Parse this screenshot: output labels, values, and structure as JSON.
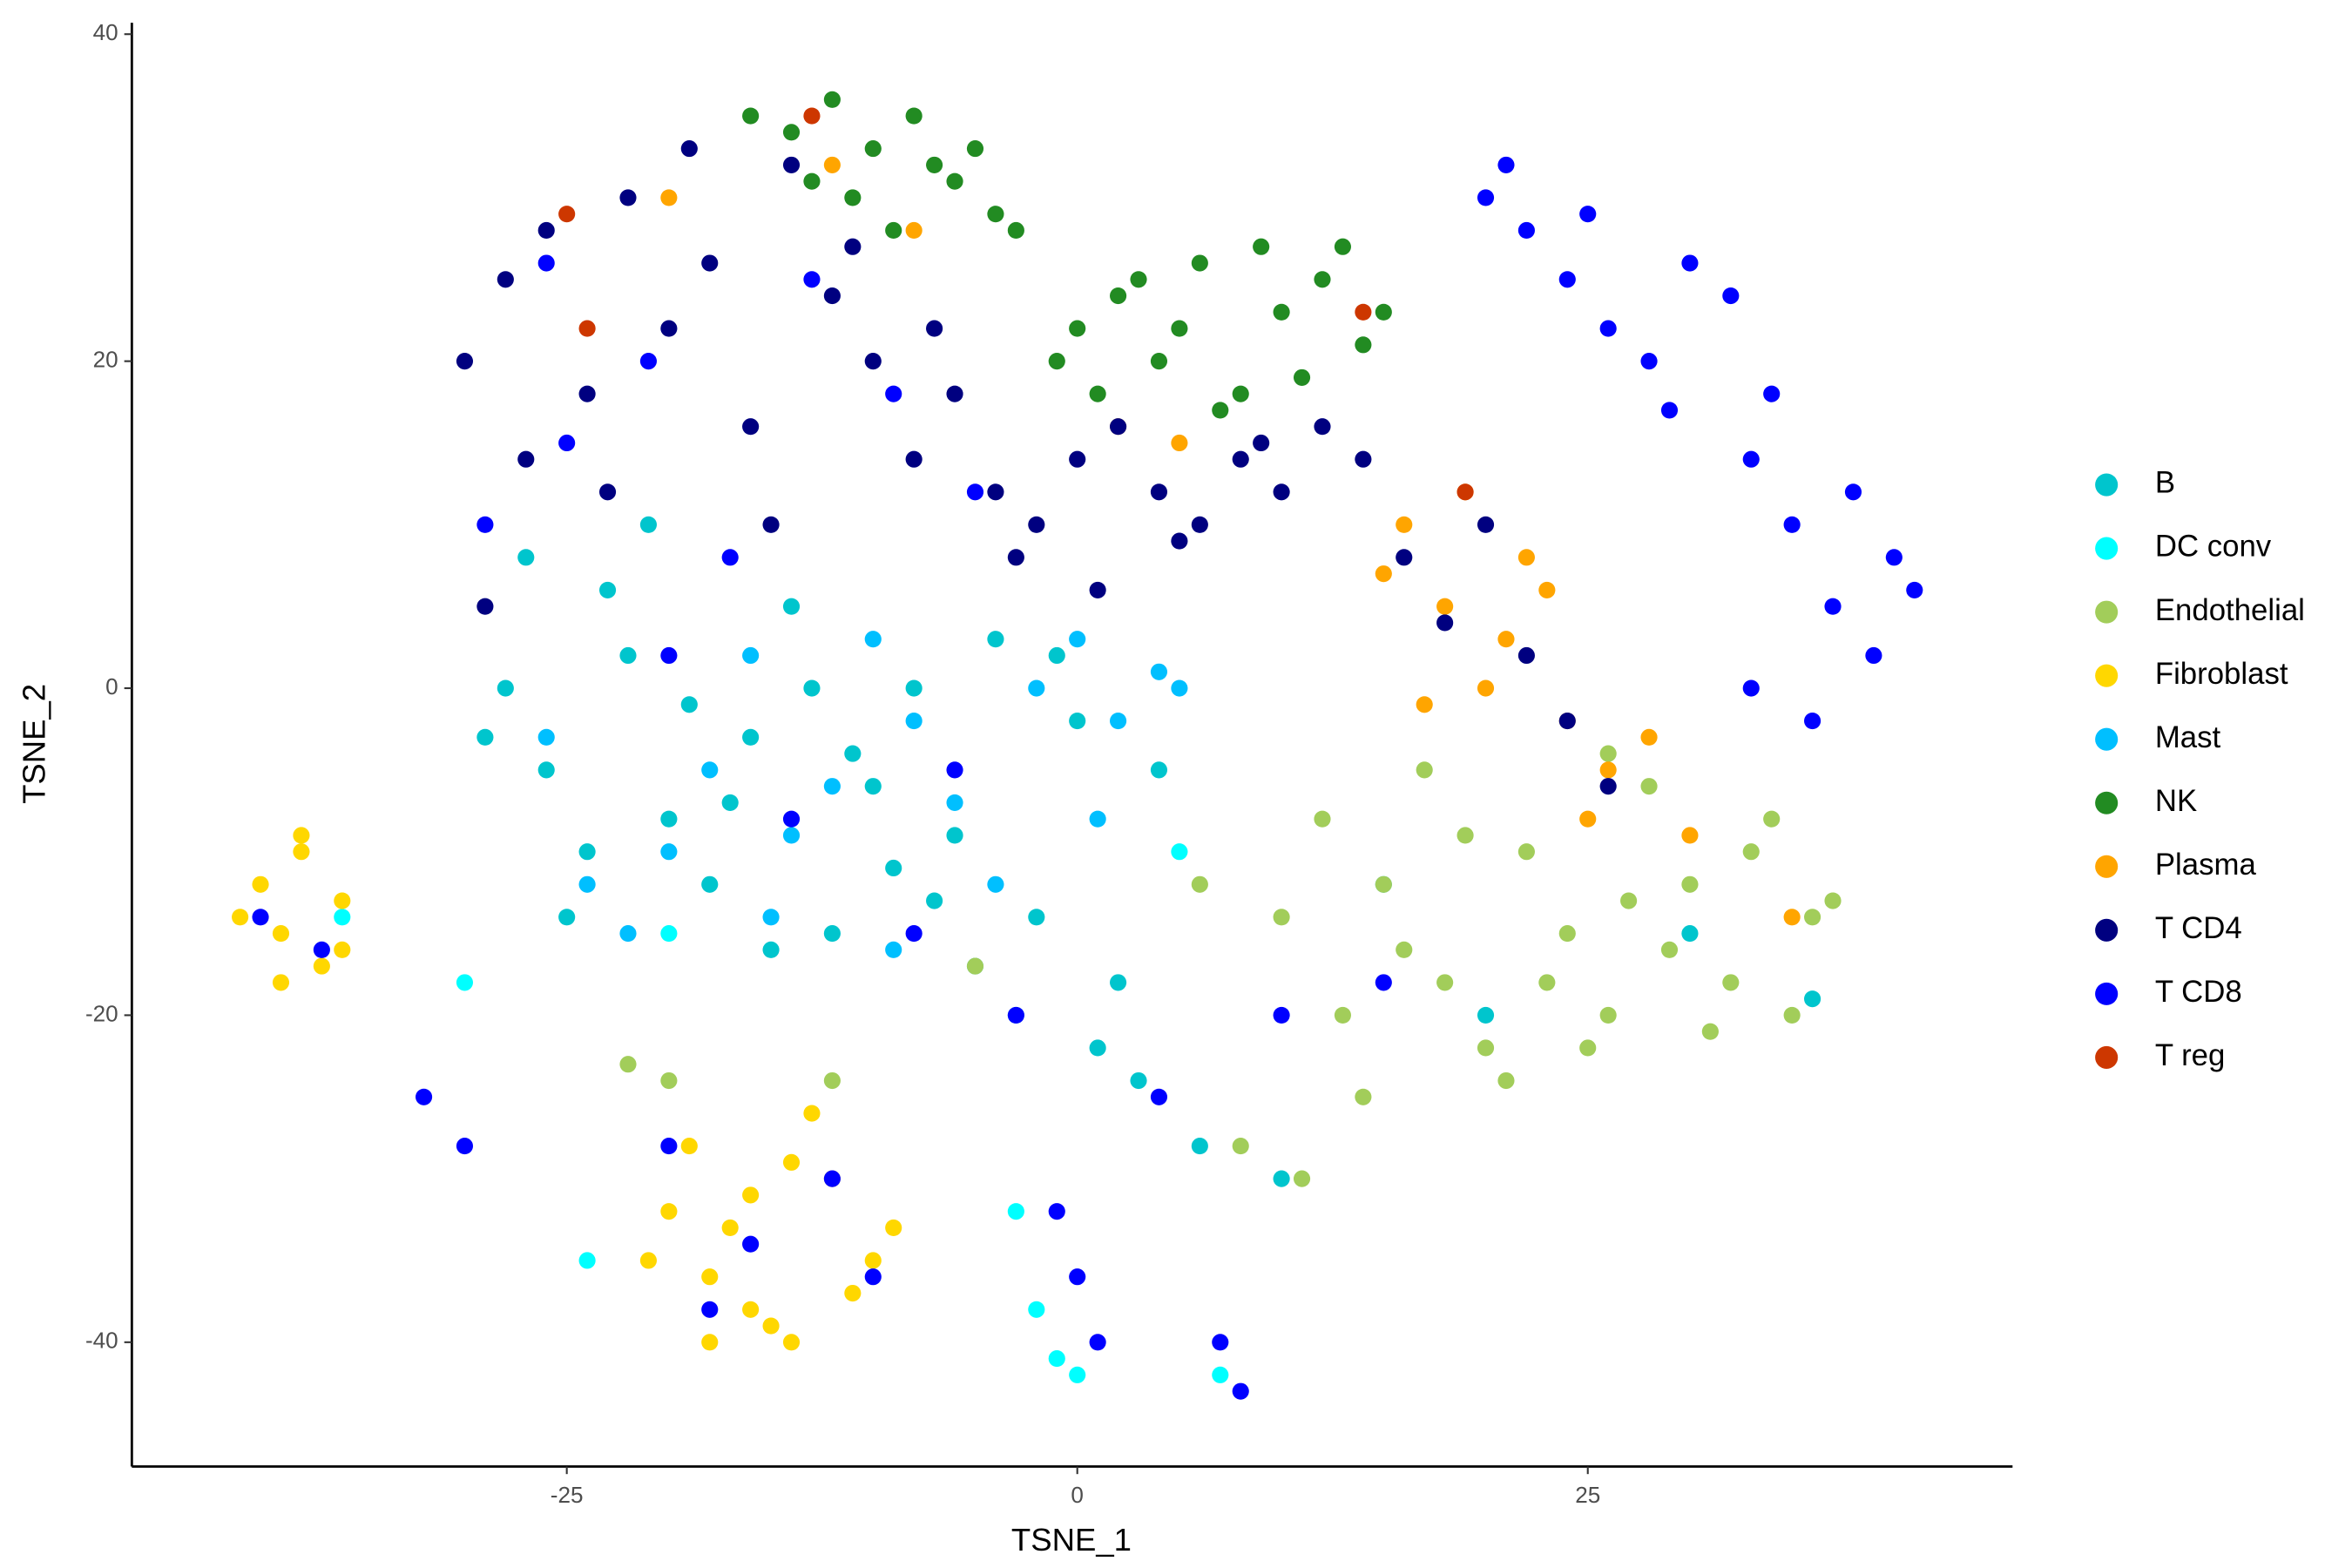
{
  "chart_data": {
    "type": "scatter",
    "x_label": "TSNE_1",
    "y_label": "TSNE_2",
    "xlim": [
      -46.3,
      45.8
    ],
    "ylim": [
      -47.6,
      40.7
    ],
    "xticks": [
      -25,
      0,
      25
    ],
    "yticks": [
      -40,
      -20,
      0,
      20,
      40
    ],
    "grid": false,
    "legend": "right",
    "series": [
      {
        "name": "B",
        "color": "#00C5CD",
        "x": [
          -28,
          -26,
          -24,
          -22,
          -20,
          -18,
          -16,
          -14,
          -12,
          -10,
          -8,
          -6,
          -4,
          -2,
          0,
          2,
          4,
          -27,
          -23,
          -19,
          -15,
          -11,
          -7,
          -3,
          1,
          -25,
          -21,
          -17,
          -13,
          -9,
          -5,
          -1,
          3,
          6,
          10,
          15,
          20,
          30,
          36,
          -29
        ],
        "y": [
          0,
          -5,
          -10,
          2,
          -8,
          -12,
          -3,
          5,
          -15,
          -6,
          0,
          -9,
          3,
          -14,
          -2,
          -18,
          -5,
          8,
          6,
          -1,
          -16,
          -4,
          -13,
          -20,
          -22,
          -14,
          10,
          -7,
          0,
          -11,
          -17,
          2,
          -24,
          -28,
          -30,
          -12,
          -20,
          -15,
          -19,
          -3
        ]
      },
      {
        "name": "DC conv",
        "color": "#00FFFF",
        "x": [
          -1,
          0,
          -3,
          -24,
          7,
          -2,
          5,
          -30,
          -20,
          -36
        ],
        "y": [
          -41,
          -42,
          -32,
          -35,
          -42,
          -38,
          -10,
          -18,
          -15,
          -14
        ]
      },
      {
        "name": "Endothelial",
        "color": "#A2CD5A",
        "x": [
          12,
          15,
          18,
          20,
          22,
          24,
          26,
          28,
          30,
          32,
          34,
          36,
          14,
          17,
          21,
          25,
          29,
          33,
          37,
          13,
          16,
          19,
          23,
          27,
          31,
          35,
          10,
          6,
          -22,
          -20,
          -12,
          -5,
          8,
          11,
          26
        ],
        "y": [
          -8,
          -12,
          -18,
          -22,
          -10,
          -15,
          -20,
          -6,
          -12,
          -18,
          -8,
          -14,
          -25,
          -5,
          -24,
          -22,
          -16,
          -10,
          -13,
          -20,
          -16,
          -9,
          -18,
          -13,
          -21,
          -20,
          -14,
          -12,
          -23,
          -24,
          -24,
          -17,
          -28,
          -30,
          -4
        ]
      },
      {
        "name": "Fibroblast",
        "color": "#FFD700",
        "x": [
          -40,
          -39,
          -38,
          -37,
          -36,
          -41,
          -38,
          -36,
          -39,
          -20,
          -18,
          -16,
          -14,
          -12,
          -10,
          -19,
          -17,
          -15,
          -13,
          -11,
          -21,
          -16,
          -14,
          -9,
          -18
        ],
        "y": [
          -12,
          -15,
          -10,
          -17,
          -13,
          -14,
          -9,
          -16,
          -18,
          -32,
          -36,
          -38,
          -40,
          -30,
          -35,
          -28,
          -33,
          -39,
          -26,
          -37,
          -35,
          -31,
          -29,
          -33,
          -40
        ]
      },
      {
        "name": "Mast",
        "color": "#00BFFF",
        "x": [
          -26,
          -20,
          -16,
          -12,
          -8,
          -4,
          0,
          4,
          -22,
          -18,
          -14,
          -10,
          -6,
          -2,
          2,
          -24,
          -15,
          -9,
          1,
          5
        ],
        "y": [
          -3,
          -10,
          2,
          -6,
          -2,
          -12,
          3,
          1,
          -15,
          -5,
          -9,
          3,
          -7,
          0,
          -2,
          -12,
          -14,
          -16,
          -8,
          0
        ]
      },
      {
        "name": "NK",
        "color": "#228B22",
        "x": [
          -14,
          -12,
          -10,
          -8,
          -6,
          -4,
          -11,
          -7,
          -13,
          -9,
          -5,
          -16,
          0,
          2,
          4,
          6,
          8,
          10,
          12,
          14,
          1,
          3,
          5,
          7,
          9,
          11,
          13,
          15,
          -1,
          -3
        ],
        "y": [
          34,
          36,
          33,
          35,
          31,
          29,
          30,
          32,
          31,
          28,
          33,
          35,
          22,
          24,
          20,
          26,
          18,
          23,
          25,
          21,
          18,
          25,
          22,
          17,
          27,
          19,
          27,
          23,
          20,
          28
        ]
      },
      {
        "name": "Plasma",
        "color": "#FFA500",
        "x": [
          16,
          18,
          20,
          22,
          24,
          26,
          19,
          21,
          23,
          25,
          17,
          15,
          28,
          30,
          5,
          -20,
          -8,
          -12,
          35,
          2
        ],
        "y": [
          10,
          5,
          0,
          8,
          -2,
          -5,
          12,
          3,
          6,
          -8,
          -1,
          7,
          -3,
          -9,
          15,
          30,
          28,
          32,
          -14,
          16
        ]
      },
      {
        "name": "T CD4",
        "color": "#000080",
        "x": [
          -30,
          -28,
          -26,
          -24,
          -22,
          -20,
          -18,
          -16,
          -14,
          -12,
          -10,
          -8,
          -6,
          -4,
          -2,
          0,
          2,
          4,
          6,
          8,
          10,
          12,
          14,
          16,
          18,
          20,
          22,
          24,
          26,
          -27,
          -23,
          -19,
          -15,
          -11,
          -7,
          -3,
          1,
          5,
          9,
          -29
        ],
        "y": [
          20,
          25,
          28,
          18,
          30,
          22,
          26,
          16,
          32,
          24,
          20,
          14,
          18,
          12,
          10,
          14,
          16,
          12,
          10,
          14,
          12,
          16,
          14,
          8,
          4,
          10,
          2,
          -2,
          -6,
          14,
          12,
          33,
          10,
          27,
          22,
          8,
          6,
          9,
          15,
          5
        ]
      },
      {
        "name": "T CD8",
        "color": "#0000FF",
        "x": [
          20,
          22,
          24,
          26,
          28,
          30,
          32,
          34,
          21,
          25,
          29,
          33,
          35,
          37,
          39,
          41,
          36,
          38,
          40,
          33,
          -29,
          -25,
          -21,
          -17,
          -13,
          -9,
          -5,
          -26,
          -20,
          -14,
          -8,
          -3,
          -20,
          -16,
          -12,
          -10,
          -18,
          -40,
          -37,
          -32,
          -30,
          -1,
          0,
          1,
          4,
          7,
          8,
          -6,
          10,
          15
        ],
        "y": [
          30,
          28,
          25,
          22,
          20,
          26,
          24,
          18,
          32,
          29,
          17,
          14,
          10,
          5,
          2,
          6,
          -2,
          12,
          8,
          0,
          10,
          15,
          20,
          8,
          25,
          18,
          12,
          26,
          2,
          -8,
          -15,
          -20,
          -28,
          -34,
          -30,
          -36,
          -38,
          -14,
          -16,
          -25,
          -28,
          -32,
          -36,
          -40,
          -25,
          -40,
          -43,
          -5,
          -20,
          -18
        ]
      },
      {
        "name": "T reg",
        "color": "#CD3700",
        "x": [
          -25,
          -13,
          14,
          -24,
          19
        ],
        "y": [
          29,
          35,
          23,
          22,
          12
        ]
      }
    ]
  }
}
